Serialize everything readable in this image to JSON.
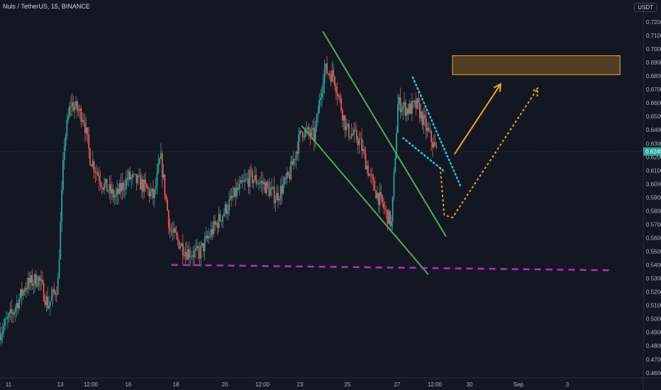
{
  "header": {
    "symbol": "Nuls / TetherUS, 15, BINANCE",
    "quote_badge": "USDT"
  },
  "price_tag": "0.6240",
  "colors": {
    "background": "#131722",
    "up": "#26a69a",
    "down": "#ef5350",
    "channel": "#4caf50",
    "support": "#c026d3",
    "target_arrow": "#f5a623",
    "short_channel": "#26c6da"
  },
  "chart_data": {
    "type": "candlestick",
    "title": "",
    "xlabel": "",
    "ylabel": "",
    "ylim": [
      0.455,
      0.725
    ],
    "grid": false,
    "y_ticks": [
      "0.7200",
      "0.7100",
      "0.7000",
      "0.6900",
      "0.6800",
      "0.6700",
      "0.6600",
      "0.6500",
      "0.6400",
      "0.6300",
      "0.6200",
      "0.6100",
      "0.6000",
      "0.5900",
      "0.5800",
      "0.5700",
      "0.5600",
      "0.5500",
      "0.5400",
      "0.5300",
      "0.5200",
      "0.5100",
      "0.5000",
      "0.4900",
      "0.4800",
      "0.4700",
      "0.4600"
    ],
    "x_ticks": [
      "11",
      "13",
      "12:00",
      "16",
      "18",
      "20",
      "12:00",
      "23",
      "25",
      "27",
      "12:00",
      "30",
      "Sep",
      "3"
    ],
    "price_path": [
      {
        "t": 0,
        "p": 0.49
      },
      {
        "t": 0.02,
        "p": 0.505
      },
      {
        "t": 0.04,
        "p": 0.525
      },
      {
        "t": 0.06,
        "p": 0.53
      },
      {
        "t": 0.075,
        "p": 0.51
      },
      {
        "t": 0.09,
        "p": 0.525
      },
      {
        "t": 0.1,
        "p": 0.63
      },
      {
        "t": 0.11,
        "p": 0.66
      },
      {
        "t": 0.13,
        "p": 0.65
      },
      {
        "t": 0.14,
        "p": 0.62
      },
      {
        "t": 0.16,
        "p": 0.6
      },
      {
        "t": 0.18,
        "p": 0.59
      },
      {
        "t": 0.2,
        "p": 0.605
      },
      {
        "t": 0.22,
        "p": 0.6
      },
      {
        "t": 0.24,
        "p": 0.59
      },
      {
        "t": 0.25,
        "p": 0.62
      },
      {
        "t": 0.265,
        "p": 0.565
      },
      {
        "t": 0.29,
        "p": 0.55
      },
      {
        "t": 0.31,
        "p": 0.548
      },
      {
        "t": 0.33,
        "p": 0.565
      },
      {
        "t": 0.35,
        "p": 0.58
      },
      {
        "t": 0.37,
        "p": 0.595
      },
      {
        "t": 0.39,
        "p": 0.605
      },
      {
        "t": 0.41,
        "p": 0.6
      },
      {
        "t": 0.43,
        "p": 0.59
      },
      {
        "t": 0.45,
        "p": 0.605
      },
      {
        "t": 0.47,
        "p": 0.64
      },
      {
        "t": 0.49,
        "p": 0.635
      },
      {
        "t": 0.505,
        "p": 0.685
      },
      {
        "t": 0.52,
        "p": 0.68
      },
      {
        "t": 0.54,
        "p": 0.64
      },
      {
        "t": 0.56,
        "p": 0.632
      },
      {
        "t": 0.58,
        "p": 0.6
      },
      {
        "t": 0.6,
        "p": 0.58
      },
      {
        "t": 0.61,
        "p": 0.57
      },
      {
        "t": 0.62,
        "p": 0.66
      },
      {
        "t": 0.635,
        "p": 0.655
      },
      {
        "t": 0.65,
        "p": 0.658
      },
      {
        "t": 0.665,
        "p": 0.64
      },
      {
        "t": 0.68,
        "p": 0.624
      }
    ],
    "annotations": {
      "falling_channel_upper": [
        {
          "t": 0.503,
          "p": 0.713
        },
        {
          "t": 0.695,
          "p": 0.561
        }
      ],
      "falling_channel_lower": [
        {
          "t": 0.47,
          "p": 0.643
        },
        {
          "t": 0.667,
          "p": 0.533
        }
      ],
      "support_line": [
        {
          "t": 0.267,
          "p": 0.54
        },
        {
          "t": 0.95,
          "p": 0.536
        }
      ],
      "resistance_box": {
        "t0": 0.705,
        "t1": 0.966,
        "p_top": 0.695,
        "p_bottom": 0.681
      },
      "short_channel_upper": [
        {
          "t": 0.643,
          "p": 0.679
        },
        {
          "t": 0.718,
          "p": 0.598
        }
      ],
      "short_channel_lower": [
        {
          "t": 0.628,
          "p": 0.634
        },
        {
          "t": 0.693,
          "p": 0.609
        }
      ],
      "scenario_solid": [
        {
          "t": 0.708,
          "p": 0.622
        },
        {
          "t": 0.78,
          "p": 0.674
        }
      ],
      "scenario_dotted": [
        {
          "t": 0.686,
          "p": 0.612
        },
        {
          "t": 0.692,
          "p": 0.577
        },
        {
          "t": 0.705,
          "p": 0.575
        },
        {
          "t": 0.838,
          "p": 0.671
        }
      ]
    }
  }
}
